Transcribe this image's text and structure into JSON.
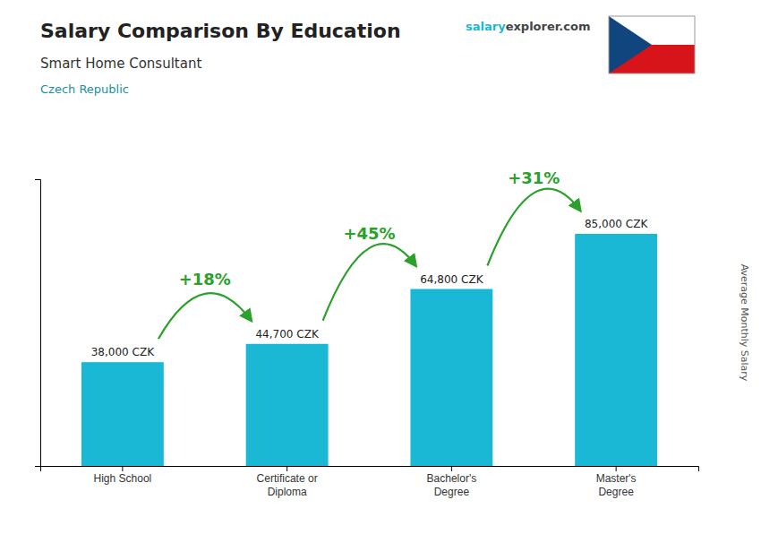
{
  "chart_data": {
    "type": "bar",
    "title": "Salary Comparison By Education",
    "subtitle": [
      "Smart Home Consultant",
      "Czech Republic"
    ],
    "ylabel": "Average Monthly Salary",
    "watermark": [
      "salary",
      "explorer",
      ".com"
    ],
    "categories": [
      "High School",
      "Certificate or\nDiploma",
      "Bachelor's\nDegree",
      "Master's\nDegree"
    ],
    "values": [
      38000,
      44700,
      64800,
      85000
    ],
    "value_labels": [
      "38,000 CZK",
      "44,700 CZK",
      "64,800 CZK",
      "85,000 CZK"
    ],
    "data_labels": true,
    "annotations": [
      "+18%",
      "+45%",
      "+31%"
    ],
    "color": "#1ab8d4",
    "ylim": [
      0,
      105000
    ],
    "yticks": [],
    "tick_labels": "x",
    "grid": false
  }
}
